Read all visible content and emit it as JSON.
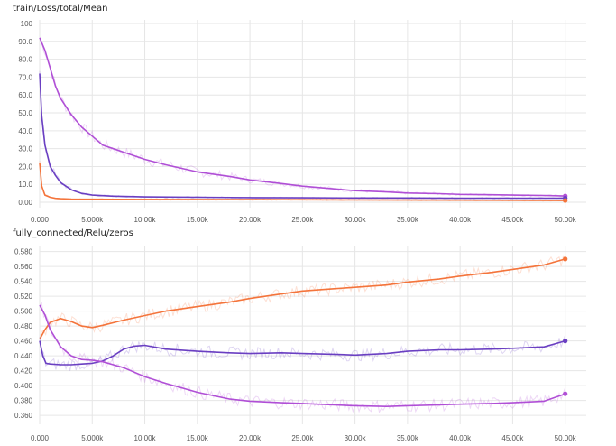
{
  "chart_data": [
    {
      "type": "line",
      "title": "train/Loss/total/Mean",
      "xlabel": "",
      "ylabel": "",
      "xlim": [
        0,
        52000
      ],
      "ylim": [
        -3,
        102
      ],
      "x_ticks": [
        "0.000",
        "5.000k",
        "10.00k",
        "15.00k",
        "20.00k",
        "25.00k",
        "30.00k",
        "35.00k",
        "40.00k",
        "45.00k",
        "50.00k"
      ],
      "y_ticks": [
        "0.00",
        "10.0",
        "20.0",
        "30.0",
        "40.0",
        "50.0",
        "60.0",
        "70.0",
        "80.0",
        "90.0",
        "100"
      ],
      "y_tick_values": [
        0,
        10,
        20,
        30,
        40,
        50,
        60,
        70,
        80,
        90,
        100
      ],
      "grid": true,
      "series": [
        {
          "color": "#b04fd6",
          "x": [
            0,
            500,
            1000,
            1500,
            2000,
            3000,
            4000,
            5000,
            6000,
            8000,
            10000,
            12000,
            15000,
            18000,
            20000,
            23000,
            25000,
            28000,
            30000,
            33000,
            35000,
            38000,
            40000,
            43000,
            45000,
            48000,
            50000
          ],
          "values": [
            92,
            85,
            75,
            65,
            58,
            49,
            42,
            37,
            32,
            28,
            24,
            21,
            17,
            14.5,
            12.5,
            10.5,
            9,
            7.5,
            6.5,
            5.8,
            5.2,
            4.8,
            4.4,
            4.2,
            4,
            3.8,
            3.5
          ]
        },
        {
          "color": "#6a3fc2",
          "x": [
            0,
            200,
            500,
            1000,
            1500,
            2000,
            3000,
            4000,
            5000,
            7000,
            10000,
            15000,
            20000,
            25000,
            30000,
            35000,
            40000,
            45000,
            50000
          ],
          "values": [
            72,
            48,
            32,
            20,
            15,
            11,
            7,
            5,
            4,
            3.4,
            3,
            2.8,
            2.6,
            2.5,
            2.4,
            2.4,
            2.3,
            2.3,
            2.3
          ]
        },
        {
          "color": "#f4743b",
          "x": [
            0,
            200,
            500,
            1000,
            1500,
            2000,
            3000,
            5000,
            10000,
            20000,
            30000,
            40000,
            50000
          ],
          "values": [
            22,
            9,
            4,
            2.8,
            2.2,
            2,
            1.8,
            1.7,
            1.6,
            1.5,
            1.3,
            1.2,
            1
          ]
        }
      ]
    },
    {
      "type": "line",
      "title": "fully_connected/Relu/zeros",
      "xlabel": "",
      "ylabel": "",
      "xlim": [
        0,
        52000
      ],
      "ylim": [
        0.348,
        0.588
      ],
      "x_ticks": [
        "0.000",
        "5.000k",
        "10.00k",
        "15.00k",
        "20.00k",
        "25.00k",
        "30.00k",
        "35.00k",
        "40.00k",
        "45.00k",
        "50.00k"
      ],
      "y_ticks": [
        "0.360",
        "0.380",
        "0.400",
        "0.420",
        "0.440",
        "0.460",
        "0.480",
        "0.500",
        "0.520",
        "0.540",
        "0.560",
        "0.580"
      ],
      "y_tick_values": [
        0.36,
        0.38,
        0.4,
        0.42,
        0.44,
        0.46,
        0.48,
        0.5,
        0.52,
        0.54,
        0.56,
        0.58
      ],
      "grid": true,
      "series": [
        {
          "color": "#f4743b",
          "x": [
            0,
            500,
            1000,
            2000,
            3000,
            4000,
            5000,
            6000,
            8000,
            10000,
            12000,
            15000,
            18000,
            20000,
            23000,
            25000,
            28000,
            30000,
            33000,
            35000,
            38000,
            40000,
            43000,
            45000,
            48000,
            50000
          ],
          "values": [
            0.462,
            0.475,
            0.485,
            0.49,
            0.486,
            0.48,
            0.478,
            0.481,
            0.488,
            0.494,
            0.5,
            0.506,
            0.512,
            0.517,
            0.523,
            0.527,
            0.53,
            0.532,
            0.535,
            0.539,
            0.543,
            0.547,
            0.552,
            0.556,
            0.562,
            0.57
          ]
        },
        {
          "color": "#6a3fc2",
          "x": [
            0,
            300,
            600,
            1000,
            2000,
            3000,
            4000,
            5000,
            6000,
            7000,
            8000,
            9000,
            10000,
            12000,
            15000,
            18000,
            20000,
            23000,
            25000,
            28000,
            30000,
            33000,
            35000,
            38000,
            40000,
            43000,
            45000,
            48000,
            50000
          ],
          "values": [
            0.46,
            0.44,
            0.43,
            0.429,
            0.428,
            0.428,
            0.429,
            0.43,
            0.433,
            0.44,
            0.449,
            0.453,
            0.454,
            0.449,
            0.446,
            0.444,
            0.443,
            0.444,
            0.443,
            0.442,
            0.441,
            0.443,
            0.446,
            0.448,
            0.448,
            0.449,
            0.45,
            0.452,
            0.46
          ]
        },
        {
          "color": "#b04fd6",
          "x": [
            0,
            500,
            1000,
            2000,
            3000,
            4000,
            5000,
            6000,
            8000,
            10000,
            12000,
            15000,
            18000,
            20000,
            23000,
            25000,
            28000,
            30000,
            33000,
            35000,
            38000,
            40000,
            43000,
            45000,
            48000,
            50000
          ],
          "values": [
            0.508,
            0.495,
            0.475,
            0.452,
            0.44,
            0.435,
            0.434,
            0.432,
            0.424,
            0.412,
            0.403,
            0.391,
            0.382,
            0.379,
            0.377,
            0.376,
            0.374,
            0.373,
            0.372,
            0.373,
            0.374,
            0.375,
            0.376,
            0.377,
            0.379,
            0.389
          ]
        }
      ]
    }
  ]
}
